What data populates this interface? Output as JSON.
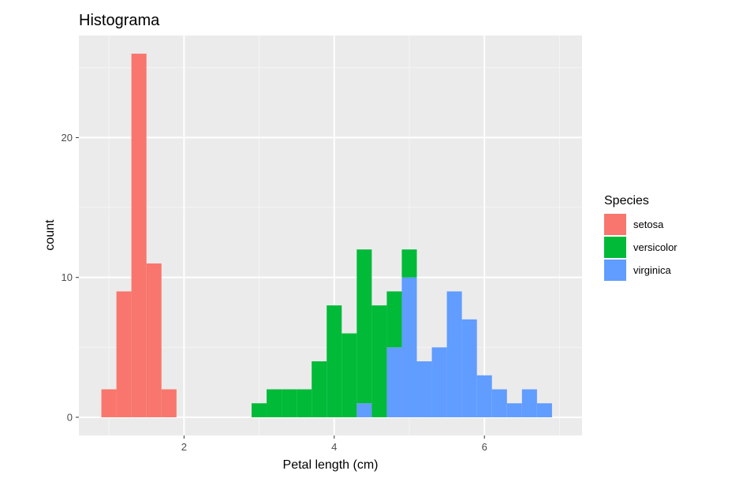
{
  "chart_data": {
    "type": "histogram",
    "title": "Histograma",
    "xlabel": "Petal length (cm)",
    "ylabel": "count",
    "bin_width": 0.2,
    "xlim": [
      0.6,
      7.3
    ],
    "ylim": [
      -1.3,
      27.3
    ],
    "x_ticks": [
      2,
      4,
      6
    ],
    "y_ticks": [
      0,
      10,
      20
    ],
    "x_tick_labels": [
      "2",
      "4",
      "6"
    ],
    "y_tick_labels": [
      "0",
      "10",
      "20"
    ],
    "stacked": true,
    "grid": true,
    "legend": {
      "title": "Species",
      "placement": "right"
    },
    "series": [
      {
        "name": "setosa",
        "color": "#F8766D",
        "bins": [
          {
            "x0": 0.9,
            "x1": 1.1,
            "count": 2
          },
          {
            "x0": 1.1,
            "x1": 1.3,
            "count": 9
          },
          {
            "x0": 1.3,
            "x1": 1.5,
            "count": 26
          },
          {
            "x0": 1.5,
            "x1": 1.7,
            "count": 11
          },
          {
            "x0": 1.7,
            "x1": 1.9,
            "count": 2
          }
        ]
      },
      {
        "name": "versicolor",
        "color": "#00BA38",
        "bins": [
          {
            "x0": 2.9,
            "x1": 3.1,
            "count": 1
          },
          {
            "x0": 3.1,
            "x1": 3.3,
            "count": 2
          },
          {
            "x0": 3.3,
            "x1": 3.5,
            "count": 2
          },
          {
            "x0": 3.5,
            "x1": 3.7,
            "count": 2
          },
          {
            "x0": 3.7,
            "x1": 3.9,
            "count": 4
          },
          {
            "x0": 3.9,
            "x1": 4.1,
            "count": 8
          },
          {
            "x0": 4.1,
            "x1": 4.3,
            "count": 6
          },
          {
            "x0": 4.3,
            "x1": 4.5,
            "count": 11
          },
          {
            "x0": 4.5,
            "x1": 4.7,
            "count": 8
          },
          {
            "x0": 4.7,
            "x1": 4.9,
            "count": 4
          },
          {
            "x0": 4.9,
            "x1": 5.1,
            "count": 2
          }
        ]
      },
      {
        "name": "virginica",
        "color": "#619CFF",
        "bins": [
          {
            "x0": 4.3,
            "x1": 4.5,
            "count": 1
          },
          {
            "x0": 4.7,
            "x1": 4.9,
            "count": 5
          },
          {
            "x0": 4.9,
            "x1": 5.1,
            "count": 10
          },
          {
            "x0": 5.1,
            "x1": 5.3,
            "count": 4
          },
          {
            "x0": 5.3,
            "x1": 5.5,
            "count": 5
          },
          {
            "x0": 5.5,
            "x1": 5.7,
            "count": 9
          },
          {
            "x0": 5.7,
            "x1": 5.9,
            "count": 7
          },
          {
            "x0": 5.9,
            "x1": 6.1,
            "count": 3
          },
          {
            "x0": 6.1,
            "x1": 6.3,
            "count": 2
          },
          {
            "x0": 6.3,
            "x1": 6.5,
            "count": 1
          },
          {
            "x0": 6.5,
            "x1": 6.7,
            "count": 2
          },
          {
            "x0": 6.7,
            "x1": 6.9,
            "count": 1
          }
        ]
      }
    ]
  },
  "colors": {
    "panel_background": "#EBEBEB",
    "grid_major": "#FFFFFF",
    "grid_minor": "#F5F5F5",
    "tick_text": "#4D4D4D"
  }
}
